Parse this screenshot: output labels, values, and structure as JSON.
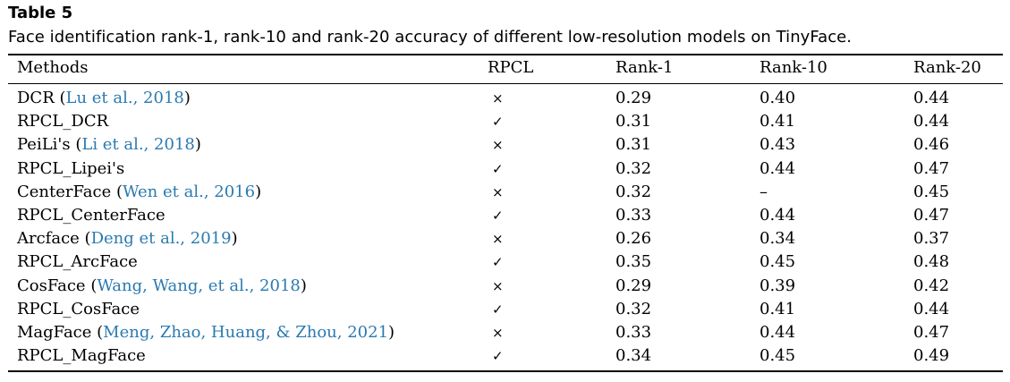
{
  "table_label": "Table 5",
  "caption": "Face identification rank-1, rank-10 and rank-20 accuracy of different low-resolution models on TinyFace.",
  "columns": {
    "methods": "Methods",
    "rpcl": "RPCL",
    "rank1": "Rank-1",
    "rank10": "Rank-10",
    "rank20": "Rank-20"
  },
  "rows": [
    {
      "method": "DCR",
      "cite": "Lu et al., 2018",
      "rpcl": "×",
      "rank1": "0.29",
      "rank10": "0.40",
      "rank20": "0.44"
    },
    {
      "method": "RPCL_DCR",
      "cite": "",
      "rpcl": "✓",
      "rank1": "0.31",
      "rank10": "0.41",
      "rank20": "0.44"
    },
    {
      "method": "PeiLi's",
      "cite": "Li et al., 2018",
      "rpcl": "×",
      "rank1": "0.31",
      "rank10": "0.43",
      "rank20": "0.46"
    },
    {
      "method": "RPCL_Lipei's",
      "cite": "",
      "rpcl": "✓",
      "rank1": "0.32",
      "rank10": "0.44",
      "rank20": "0.47"
    },
    {
      "method": "CenterFace",
      "cite": "Wen et al., 2016",
      "rpcl": "×",
      "rank1": "0.32",
      "rank10": "–",
      "rank20": "0.45"
    },
    {
      "method": "RPCL_CenterFace",
      "cite": "",
      "rpcl": "✓",
      "rank1": "0.33",
      "rank10": "0.44",
      "rank20": "0.47"
    },
    {
      "method": "Arcface",
      "cite": "Deng et al., 2019",
      "rpcl": "×",
      "rank1": "0.26",
      "rank10": "0.34",
      "rank20": "0.37"
    },
    {
      "method": "RPCL_ArcFace",
      "cite": "",
      "rpcl": "✓",
      "rank1": "0.35",
      "rank10": "0.45",
      "rank20": "0.48"
    },
    {
      "method": "CosFace",
      "cite": "Wang, Wang, et al., 2018",
      "rpcl": "×",
      "rank1": "0.29",
      "rank10": "0.39",
      "rank20": "0.42"
    },
    {
      "method": "RPCL_CosFace",
      "cite": "",
      "rpcl": "✓",
      "rank1": "0.32",
      "rank10": "0.41",
      "rank20": "0.44"
    },
    {
      "method": "MagFace",
      "cite": "Meng, Zhao, Huang, & Zhou, 2021",
      "rpcl": "×",
      "rank1": "0.33",
      "rank10": "0.44",
      "rank20": "0.47"
    },
    {
      "method": "RPCL_MagFace",
      "cite": "",
      "rpcl": "✓",
      "rank1": "0.34",
      "rank10": "0.45",
      "rank20": "0.49"
    }
  ],
  "colors": {
    "citation_link": "#2a7ab0",
    "text": "#000000"
  }
}
